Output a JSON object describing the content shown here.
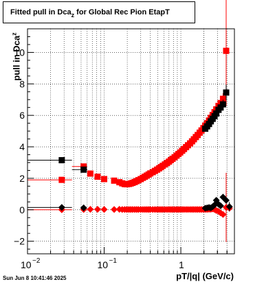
{
  "title": {
    "main": "Fitted pull in Dca",
    "sub": "z",
    "rest": " for Global Rec Pion EtapT"
  },
  "ylabel": {
    "main": "pull in Dca",
    "sub": "z"
  },
  "xlabel": "pT/|q| (GeV/c)",
  "timestamp": "Sun Jun  8 10:41:46 2025",
  "chart_data": {
    "type": "scatter",
    "xscale": "log",
    "xlim": [
      0.01,
      5
    ],
    "ylim": [
      -2.8,
      11.5
    ],
    "grid": true,
    "x_tick_labels": [
      {
        "value": 0.01,
        "base": "10",
        "exp": "−2"
      },
      {
        "value": 0.1,
        "base": "10",
        "exp": "−1"
      },
      {
        "value": 1,
        "base": "1",
        "exp": ""
      }
    ],
    "y_ticks": [
      -2,
      0,
      2,
      4,
      6,
      8,
      10
    ],
    "series": [
      {
        "color": "#ff0000",
        "marker": "square",
        "x": [
          0.028,
          0.054,
          0.066,
          0.082,
          0.1,
          0.135,
          0.158,
          0.172,
          0.185,
          0.197,
          0.21,
          0.222,
          0.235,
          0.25,
          0.265,
          0.28,
          0.3,
          0.32,
          0.34,
          0.36,
          0.38,
          0.4,
          0.43,
          0.46,
          0.49,
          0.52,
          0.55,
          0.58,
          0.62,
          0.66,
          0.7,
          0.74,
          0.78,
          0.83,
          0.88,
          0.93,
          0.98,
          1.04,
          1.1,
          1.17,
          1.24,
          1.32,
          1.4,
          1.48,
          1.57,
          1.66,
          1.76,
          1.86,
          1.97,
          2.08,
          2.2,
          2.33,
          2.46,
          2.6,
          2.75,
          2.9,
          3.1,
          3.3,
          3.55,
          3.9,
          4.3
        ],
        "y": [
          1.9,
          2.75,
          2.3,
          2.1,
          1.95,
          1.85,
          1.75,
          1.68,
          1.63,
          1.62,
          1.64,
          1.67,
          1.71,
          1.76,
          1.82,
          1.88,
          1.95,
          2.03,
          2.1,
          2.17,
          2.24,
          2.31,
          2.39,
          2.47,
          2.55,
          2.63,
          2.71,
          2.79,
          2.88,
          2.97,
          3.06,
          3.15,
          3.24,
          3.34,
          3.44,
          3.54,
          3.64,
          3.75,
          3.86,
          3.98,
          4.1,
          4.22,
          4.35,
          4.48,
          4.62,
          4.75,
          4.9,
          5.04,
          5.19,
          5.35,
          5.5,
          5.67,
          5.84,
          6.02,
          6.2,
          6.38,
          6.6,
          6.78,
          7.05,
          10.1,
          0
        ],
        "yerr": [
          0.05,
          0.05,
          0.05,
          0.05,
          0.05,
          0.05,
          0.05,
          0.05,
          0.05,
          0.05,
          0.05,
          0.05,
          0.05,
          0.05,
          0.05,
          0.05,
          0.05,
          0.05,
          0.05,
          0.05,
          0.05,
          0.05,
          0.05,
          0.05,
          0.05,
          0.05,
          0.05,
          0.05,
          0.05,
          0.05,
          0.05,
          0.05,
          0.05,
          0.05,
          0.05,
          0.05,
          0.05,
          0.05,
          0.05,
          0.05,
          0.05,
          0.05,
          0.05,
          0.05,
          0.05,
          0.05,
          0.05,
          0.05,
          0.05,
          0.05,
          0.05,
          0.05,
          0.08,
          0.1,
          0.12,
          0.15,
          0.2,
          0.25,
          0.35,
          3.5,
          0
        ],
        "show": [
          true,
          true,
          true,
          true,
          true,
          true,
          true,
          true,
          true,
          true,
          true,
          true,
          true,
          true,
          true,
          true,
          true,
          true,
          true,
          true,
          true,
          true,
          true,
          true,
          true,
          true,
          true,
          true,
          true,
          true,
          true,
          true,
          true,
          true,
          true,
          true,
          true,
          true,
          true,
          true,
          true,
          true,
          true,
          true,
          true,
          true,
          true,
          true,
          true,
          true,
          true,
          true,
          true,
          true,
          true,
          true,
          true,
          true,
          true,
          true,
          false
        ]
      },
      {
        "color": "#000000",
        "marker": "square",
        "x": [
          0.028,
          0.054,
          2.08,
          2.2,
          2.33,
          2.46,
          2.6,
          2.75,
          2.9,
          3.1,
          3.3,
          3.55,
          3.9
        ],
        "y": [
          3.15,
          2.55,
          5.15,
          5.3,
          5.45,
          5.62,
          5.78,
          5.95,
          6.12,
          6.35,
          6.5,
          6.7,
          7.45
        ],
        "yerr": [
          0.05,
          0.05,
          0.1,
          0.1,
          0.1,
          0.12,
          0.12,
          0.15,
          0.15,
          0.2,
          0.25,
          0.3,
          0.5
        ]
      },
      {
        "color": "#ff0000",
        "marker": "diamond",
        "x": [
          0.028,
          0.054,
          0.066,
          0.082,
          0.1,
          0.135,
          0.158,
          0.172,
          0.185,
          0.197,
          0.21,
          0.222,
          0.235,
          0.25,
          0.265,
          0.28,
          0.3,
          0.32,
          0.34,
          0.36,
          0.38,
          0.4,
          0.43,
          0.46,
          0.49,
          0.52,
          0.55,
          0.58,
          0.62,
          0.66,
          0.7,
          0.74,
          0.78,
          0.83,
          0.88,
          0.93,
          0.98,
          1.04,
          1.1,
          1.17,
          1.24,
          1.32,
          1.4,
          1.48,
          1.57,
          1.66,
          1.76,
          1.86,
          1.97,
          2.08,
          2.2,
          2.33,
          2.46,
          2.6,
          2.75,
          2.9,
          3.1,
          3.3,
          3.55,
          3.9,
          4.3
        ],
        "y": [
          0.0,
          0.02,
          0.03,
          0.03,
          0.02,
          0.02,
          0.03,
          0.02,
          0.02,
          0.02,
          0.02,
          0.02,
          0.02,
          0.02,
          0.02,
          0.02,
          0.02,
          0.02,
          0.02,
          0.02,
          0.02,
          0.02,
          0.02,
          0.02,
          0.02,
          0.02,
          0.02,
          0.02,
          0.02,
          0.02,
          0.02,
          0.02,
          0.02,
          0.02,
          0.02,
          0.02,
          0.02,
          0.02,
          0.02,
          0.02,
          0.02,
          0.02,
          0.02,
          0.02,
          0.02,
          0.02,
          0.02,
          0.02,
          0.02,
          0.02,
          0.02,
          0.03,
          0.03,
          0.05,
          0.02,
          -0.05,
          -0.1,
          -0.2,
          -0.3,
          0.15,
          0.1
        ],
        "yerr": [
          0.03,
          0.03,
          0.03,
          0.03,
          0.03,
          0.03,
          0.03,
          0.03,
          0.03,
          0.03,
          0.03,
          0.03,
          0.03,
          0.03,
          0.03,
          0.03,
          0.03,
          0.03,
          0.03,
          0.03,
          0.03,
          0.03,
          0.03,
          0.03,
          0.03,
          0.03,
          0.03,
          0.03,
          0.03,
          0.03,
          0.03,
          0.03,
          0.03,
          0.03,
          0.03,
          0.03,
          0.03,
          0.03,
          0.03,
          0.03,
          0.03,
          0.03,
          0.03,
          0.03,
          0.03,
          0.03,
          0.03,
          0.03,
          0.03,
          0.03,
          0.03,
          0.03,
          0.03,
          0.05,
          0.05,
          0.06,
          0.08,
          0.1,
          0.15,
          2.2,
          0.2
        ]
      },
      {
        "color": "#000000",
        "marker": "diamond",
        "x": [
          0.028,
          0.054,
          2.08,
          2.2,
          2.33,
          2.46,
          2.6,
          2.75,
          2.9,
          3.1,
          3.3,
          3.55,
          3.9,
          4.3
        ],
        "y": [
          0.15,
          0.12,
          0.1,
          0.12,
          0.15,
          0.12,
          0.2,
          0.3,
          0.6,
          0.35,
          0.25,
          0.8,
          0.6,
          0.2
        ],
        "yerr": [
          0.03,
          0.03,
          0.05,
          0.05,
          0.05,
          0.06,
          0.06,
          0.08,
          0.1,
          0.1,
          0.12,
          0.15,
          0.2,
          0.3
        ]
      }
    ],
    "hlines": [
      {
        "color": "#000000",
        "y": 3.15,
        "x1": 0.01,
        "x2": 0.038
      },
      {
        "color": "#ff0000",
        "y": 1.9,
        "x1": 0.01,
        "x2": 0.038
      },
      {
        "color": "#000000",
        "y": 0.15,
        "x1": 0.01,
        "x2": 0.038
      },
      {
        "color": "#ff0000",
        "y": 0.0,
        "x1": 0.01,
        "x2": 0.038
      },
      {
        "color": "#000000",
        "y": 2.55,
        "x1": 0.038,
        "x2": 0.06
      },
      {
        "color": "#ff0000",
        "y": 2.75,
        "x1": 0.038,
        "x2": 0.06
      }
    ]
  }
}
